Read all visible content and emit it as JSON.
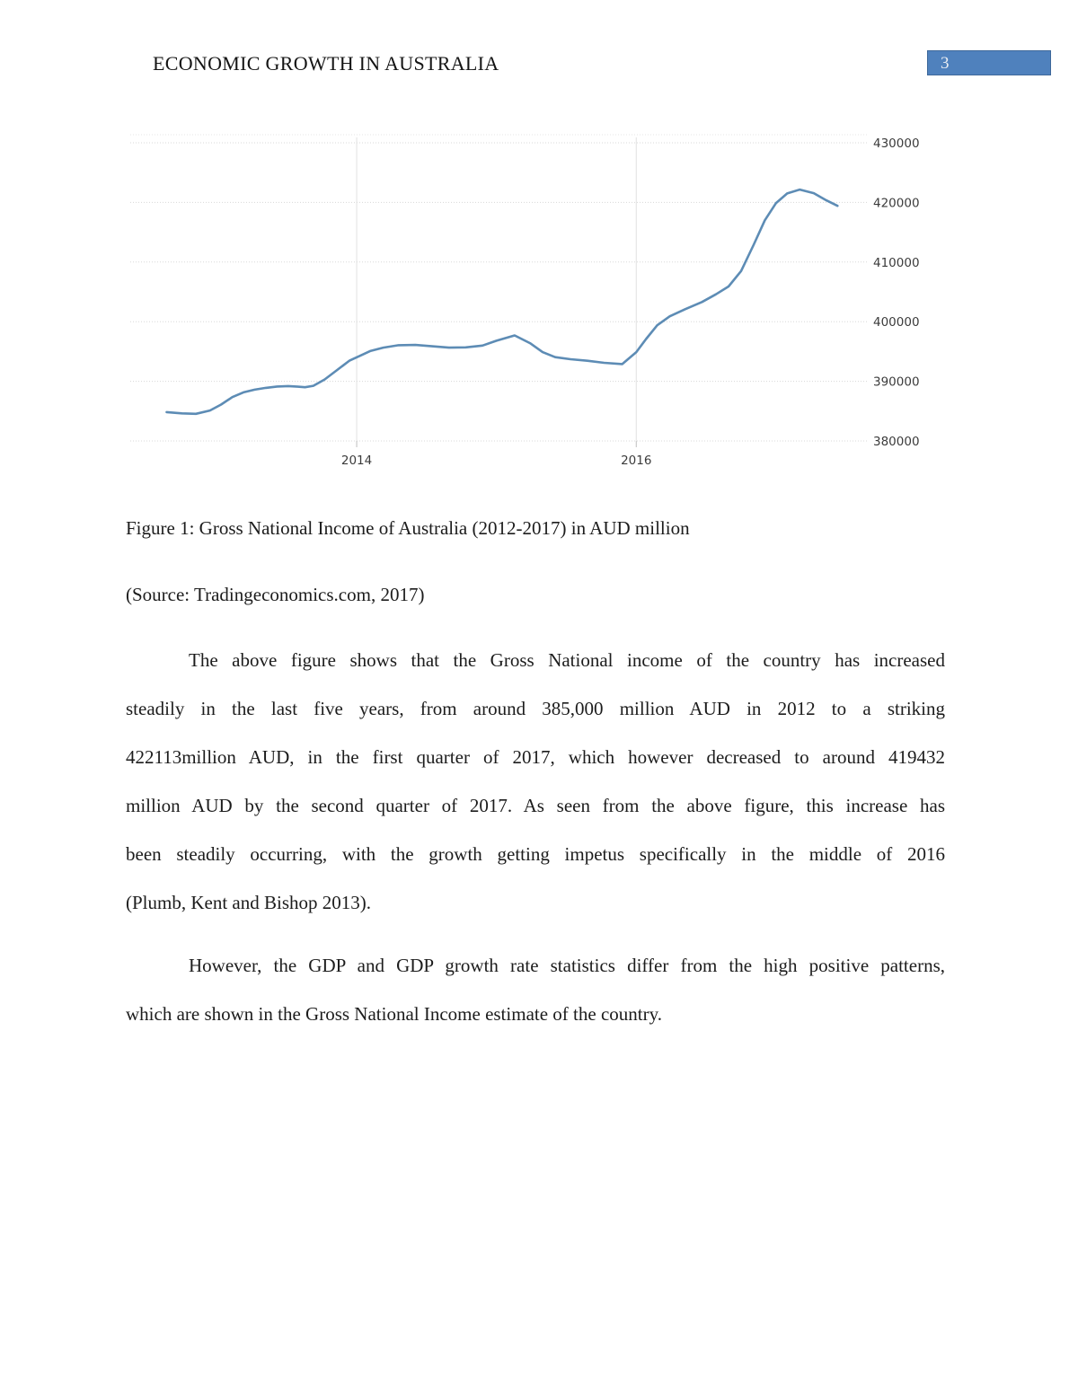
{
  "page": {
    "header_title": "ECONOMIC GROWTH IN AUSTRALIA",
    "page_number": "3",
    "page_number_bg": "#4f81bd"
  },
  "figure": {
    "caption": "Figure 1: Gross National Income of Australia (2012-2017) in AUD million",
    "source": "(Source: Tradingeconomics.com, 2017)"
  },
  "body": {
    "para1_lines": [
      "The above figure shows that the Gross National income of the country has increased",
      "steadily in the last five years, from around 385,000 million AUD in 2012 to a striking",
      "422113million AUD, in the first quarter of 2017, which however decreased to around 419432",
      "million AUD by the second quarter of 2017. As seen from the above figure, this increase has",
      "been steadily occurring, with the growth getting impetus specifically in the middle of 2016",
      "(Plumb, Kent and Bishop 2013)."
    ],
    "para2_lines": [
      "However, the GDP and GDP growth rate statistics differ from the high positive patterns,",
      "which are shown in the Gross National Income estimate of the country."
    ]
  },
  "chart_data": {
    "type": "line",
    "title": "",
    "series_name": "Gross National Income of Australia (AUD million, quarterly)",
    "legend": "none",
    "grid": "dotted horizontal gridlines, light vertical year gridlines",
    "x_ticks": [
      2014,
      2016
    ],
    "y_ticks": [
      380000,
      390000,
      400000,
      410000,
      420000,
      430000
    ],
    "x_range": [
      2012.38,
      2017.65
    ],
    "y_range": [
      380000,
      430000
    ],
    "y_axis_side": "right",
    "line_color": "#5d8cb5",
    "points": [
      [
        2012.64,
        384830
      ],
      [
        2012.75,
        384620
      ],
      [
        2012.85,
        384550
      ],
      [
        2012.95,
        385100
      ],
      [
        2013.03,
        386100
      ],
      [
        2013.11,
        387350
      ],
      [
        2013.19,
        388150
      ],
      [
        2013.27,
        388600
      ],
      [
        2013.35,
        388900
      ],
      [
        2013.43,
        389120
      ],
      [
        2013.51,
        389200
      ],
      [
        2013.58,
        389100
      ],
      [
        2013.63,
        389000
      ],
      [
        2013.69,
        389250
      ],
      [
        2013.77,
        390300
      ],
      [
        2013.86,
        391900
      ],
      [
        2013.95,
        393500
      ],
      [
        2014.02,
        394250
      ],
      [
        2014.1,
        395100
      ],
      [
        2014.19,
        395650
      ],
      [
        2014.3,
        396050
      ],
      [
        2014.42,
        396100
      ],
      [
        2014.56,
        395850
      ],
      [
        2014.66,
        395650
      ],
      [
        2014.78,
        395700
      ],
      [
        2014.9,
        396000
      ],
      [
        2015.0,
        396800
      ],
      [
        2015.13,
        397700
      ],
      [
        2015.24,
        396400
      ],
      [
        2015.33,
        394900
      ],
      [
        2015.42,
        394050
      ],
      [
        2015.53,
        393700
      ],
      [
        2015.65,
        393450
      ],
      [
        2015.77,
        393100
      ],
      [
        2015.9,
        392890
      ],
      [
        2016.0,
        394900
      ],
      [
        2016.07,
        397100
      ],
      [
        2016.15,
        399400
      ],
      [
        2016.24,
        400900
      ],
      [
        2016.35,
        402100
      ],
      [
        2016.47,
        403300
      ],
      [
        2016.57,
        404600
      ],
      [
        2016.66,
        405900
      ],
      [
        2016.75,
        408500
      ],
      [
        2016.84,
        412900
      ],
      [
        2016.92,
        417000
      ],
      [
        2017.0,
        419900
      ],
      [
        2017.08,
        421500
      ],
      [
        2017.17,
        422150
      ],
      [
        2017.27,
        421550
      ],
      [
        2017.36,
        420350
      ],
      [
        2017.44,
        419430
      ]
    ]
  }
}
